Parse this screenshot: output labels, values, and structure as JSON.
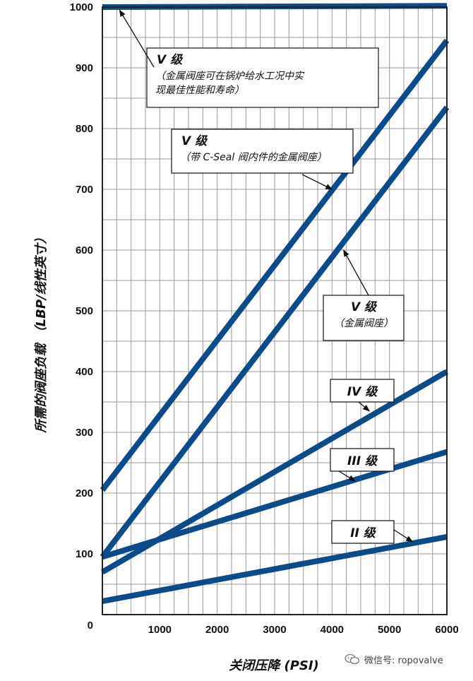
{
  "chart_data": {
    "type": "line",
    "xlabel": "关闭压降 (PSI)",
    "ylabel": "所需的阀座负载 （LBP/线性英寸）",
    "xlim": [
      0,
      6000
    ],
    "ylim": [
      0,
      1000
    ],
    "x_ticks": [
      "0",
      "1000",
      "2000",
      "3000",
      "4000",
      "5000",
      "6000"
    ],
    "y_ticks": [
      "0",
      "100",
      "200",
      "300",
      "400",
      "500",
      "600",
      "700",
      "800",
      "900",
      "1000"
    ],
    "grid": true,
    "series": [
      {
        "x": [
          0,
          6000
        ],
        "y": [
          1000,
          1002
        ]
      },
      {
        "x": [
          0,
          6000
        ],
        "y": [
          205,
          945
        ]
      },
      {
        "x": [
          0,
          6000
        ],
        "y": [
          95,
          835
        ]
      },
      {
        "x": [
          0,
          6000
        ],
        "y": [
          70,
          400
        ]
      },
      {
        "x": [
          0,
          6000
        ],
        "y": [
          22,
          128
        ]
      },
      {
        "x": [
          0,
          6000
        ],
        "y": [
          95,
          268
        ]
      }
    ],
    "annotations": [
      {
        "title": "V 级",
        "lines": [
          "（金属阀座可在锅炉给水工况中实",
          "现最佳性能和寿命）"
        ],
        "point": [
          300,
          995
        ]
      },
      {
        "title": "V 级",
        "lines": [
          "（带 C-Seal 阀内件的金属阀座）"
        ],
        "point": [
          4000,
          700
        ]
      },
      {
        "title": "V 级",
        "lines": [
          "（金属阀座）"
        ],
        "point": [
          4200,
          600
        ]
      },
      {
        "title": "IV 级",
        "lines": [],
        "point": [
          4650,
          335
        ]
      },
      {
        "title": "III 级",
        "lines": [],
        "point": [
          4400,
          220
        ]
      },
      {
        "title": "II 级",
        "lines": [],
        "point": [
          5400,
          120
        ]
      }
    ],
    "colors": {
      "line": "#0d4a8a",
      "grid": "#9a9a9a",
      "frame": "#222222"
    }
  },
  "watermark": {
    "text": "微信号: ropovalve",
    "icon": "wechat-icon"
  }
}
